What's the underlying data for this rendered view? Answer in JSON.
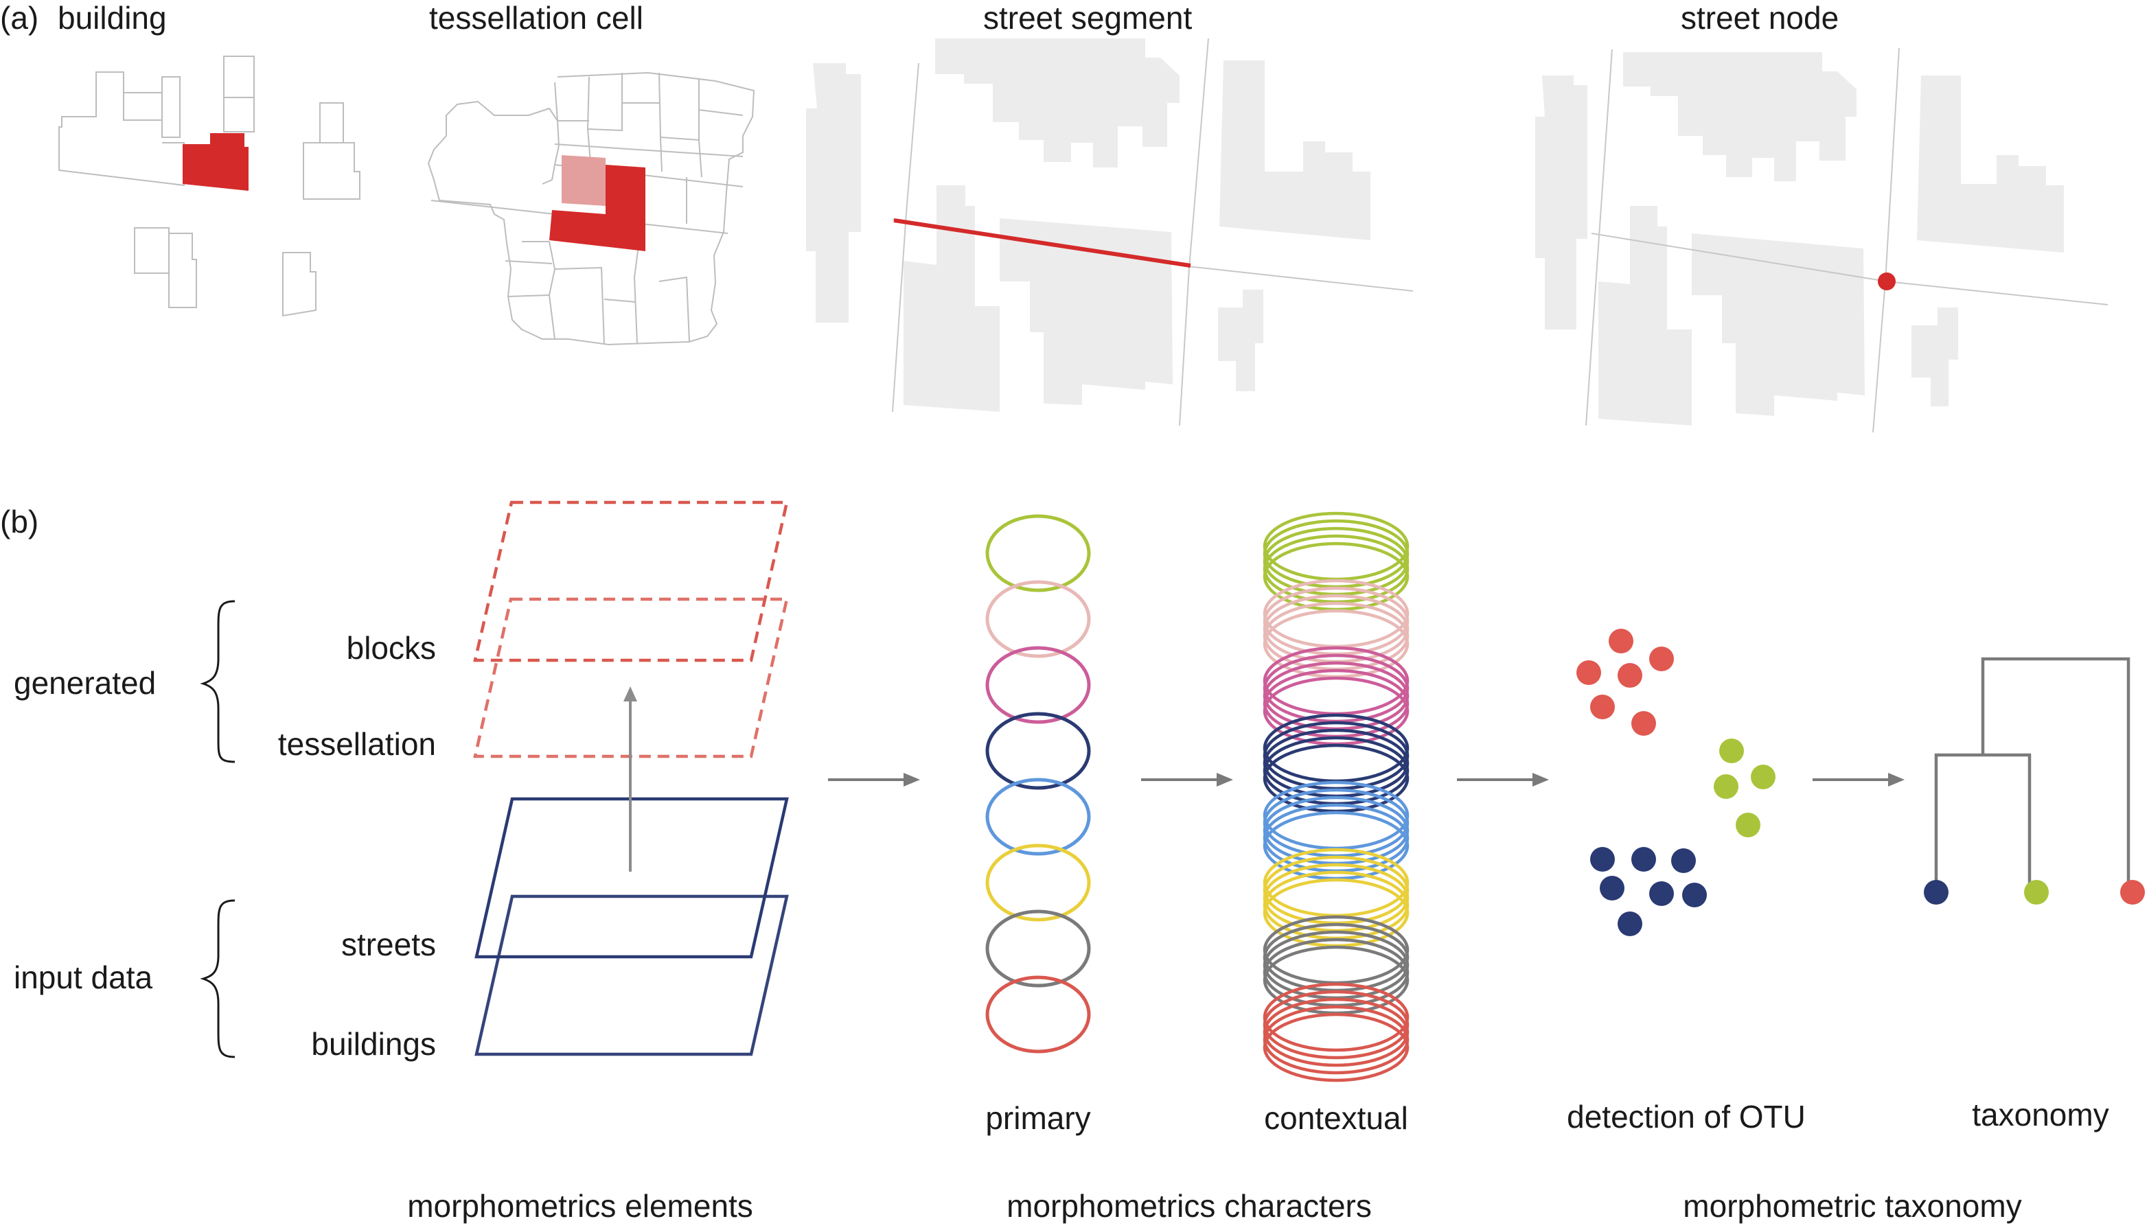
{
  "panel_a": {
    "label": "(a)",
    "titles": {
      "building": "building",
      "tessellation": "tessellation cell",
      "segment": "street segment",
      "node": "street node"
    }
  },
  "panel_b": {
    "label": "(b)",
    "groups": {
      "generated": "generated",
      "input": "input data"
    },
    "layers": {
      "blocks": "blocks",
      "tessellation": "tessellation",
      "streets": "streets",
      "buildings": "buildings"
    },
    "stack_labels": {
      "primary": "primary",
      "contextual": "contextual",
      "otu": "detection of OTU",
      "taxonomy": "taxonomy"
    },
    "section_labels": {
      "elements": "morphometrics elements",
      "characters": "morphometrics characters",
      "taxonomy": "morphometric taxonomy"
    }
  },
  "colors": {
    "highlight": "#d42a2a",
    "highlight_light": "#e39e9e",
    "building_fill": "#ececec",
    "outline": "#bdbdbd",
    "street": "#c8c8c8",
    "layer_generated": "#d9584f",
    "layer_input": "#2a3a73",
    "arrow": "#7a7a7a",
    "rings": [
      "#a9c43a",
      "#e8b9b6",
      "#cc5d99",
      "#2a3a73",
      "#5e97dc",
      "#e9cf3a",
      "#7a7a7a",
      "#d9584f"
    ],
    "clusters": {
      "red": "#e0584f",
      "green": "#a9c43a",
      "navy": "#2a3a73"
    }
  }
}
